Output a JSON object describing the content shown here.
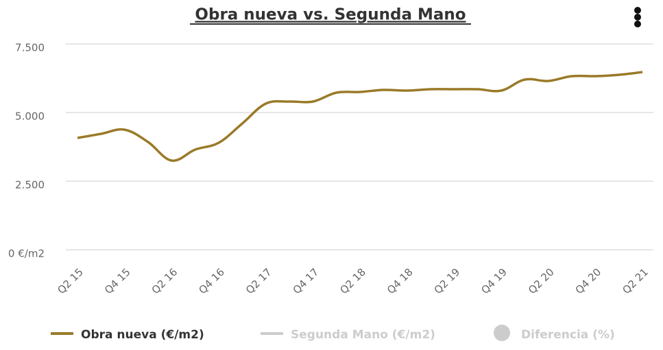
{
  "chart_data": {
    "type": "line",
    "title": "Obra nueva vs. Segunda Mano",
    "categories": [
      "Q2 15",
      null,
      "Q4 15",
      null,
      "Q2 16",
      null,
      "Q4 16",
      null,
      "Q2 17",
      null,
      "Q4 17",
      null,
      "Q2 18",
      null,
      "Q4 18",
      null,
      "Q2 19",
      null,
      "Q4 19",
      null,
      "Q2 20",
      null,
      "Q4 20",
      null,
      "Q2 21"
    ],
    "series": [
      {
        "name": "Obra nueva (€/m2)",
        "color": "#9a7a28",
        "visible": true,
        "symbol": "line",
        "values": [
          4075,
          4225,
          4375,
          3925,
          3250,
          3650,
          3900,
          4600,
          5325,
          5400,
          5400,
          5725,
          5750,
          5825,
          5800,
          5850,
          5850,
          5850,
          5800,
          6200,
          6150,
          6325,
          6325,
          6375,
          6475
        ]
      },
      {
        "name": "Segunda Mano (€/m2)",
        "color": "#cccccc",
        "visible": false,
        "symbol": "line"
      },
      {
        "name": "Diferencia (%)",
        "color": "#cccccc",
        "visible": false,
        "symbol": "circle"
      }
    ],
    "ylim": [
      0,
      7500
    ],
    "yticks": [
      {
        "value": 0,
        "label": "0 €/m2"
      },
      {
        "value": 2500,
        "label": "2.500"
      },
      {
        "value": 5000,
        "label": "5.000"
      },
      {
        "value": 7500,
        "label": "7.500"
      }
    ],
    "grid": true
  }
}
